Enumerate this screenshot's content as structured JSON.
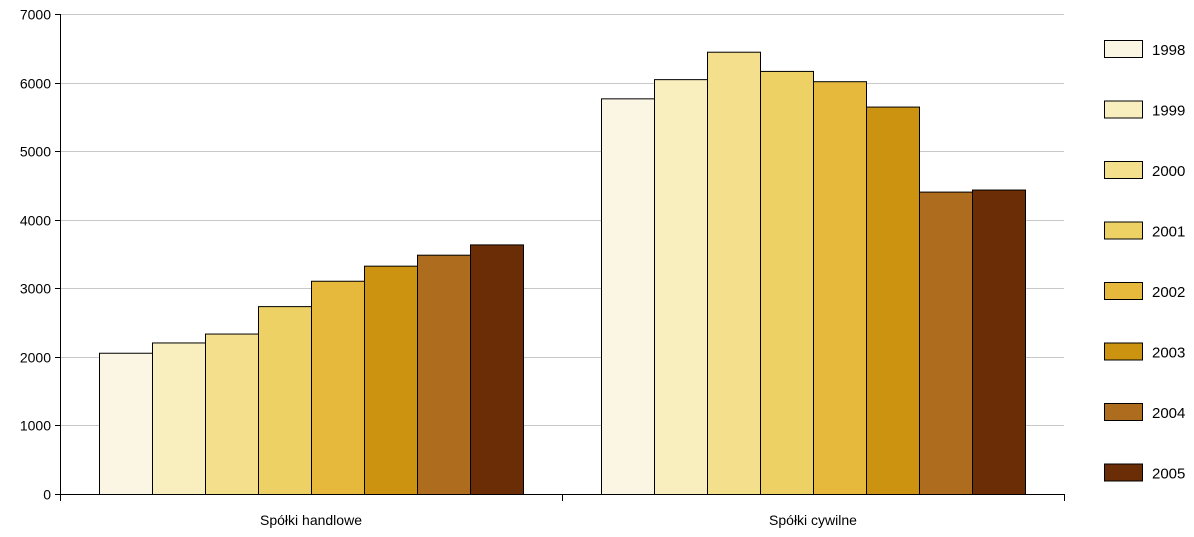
{
  "chart_data": {
    "type": "bar",
    "categories": [
      "Spółki handlowe",
      "Spółki cywilne"
    ],
    "series": [
      {
        "name": "1998",
        "color": "#FBF5E3",
        "values": [
          2060,
          5770
        ]
      },
      {
        "name": "1999",
        "color": "#F9EEBE",
        "values": [
          2210,
          6050
        ]
      },
      {
        "name": "2000",
        "color": "#F4E08C",
        "values": [
          2340,
          6450
        ]
      },
      {
        "name": "2001",
        "color": "#EDD164",
        "values": [
          2740,
          6170
        ]
      },
      {
        "name": "2002",
        "color": "#E6B93C",
        "values": [
          3110,
          6020
        ]
      },
      {
        "name": "2003",
        "color": "#CB9310",
        "values": [
          3330,
          5650
        ]
      },
      {
        "name": "2004",
        "color": "#AD6C1E",
        "values": [
          3490,
          4410
        ]
      },
      {
        "name": "2005",
        "color": "#6A2D06",
        "values": [
          3640,
          4440
        ]
      }
    ],
    "yticks": [
      "0",
      "1000",
      "2000",
      "3000",
      "4000",
      "5000",
      "6000",
      "7000"
    ],
    "ylim": [
      0,
      7000
    ],
    "grid": true,
    "legend_position": "right",
    "title": "",
    "xlabel": "",
    "ylabel": ""
  }
}
